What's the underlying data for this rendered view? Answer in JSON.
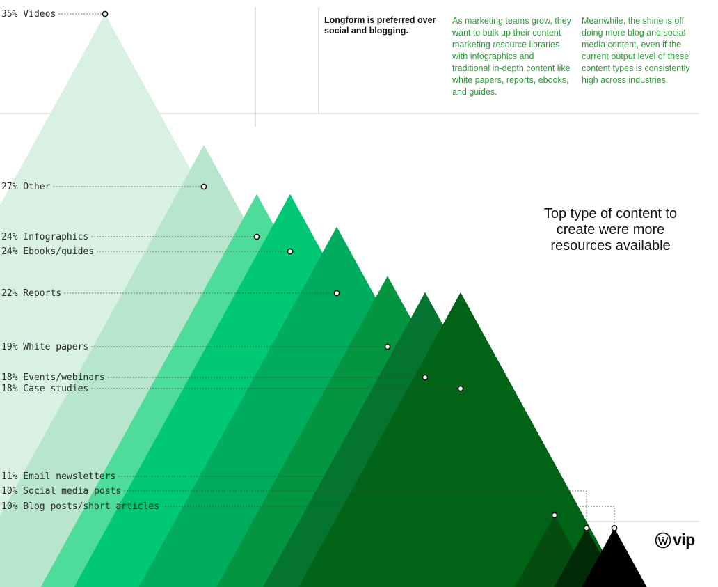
{
  "header": {
    "headline": "Longform is preferred over social and blogging.",
    "paragraph_1": "As marketing teams grow, they want to bulk up their content marketing resource libraries with infographics and traditional in-depth content like white papers, reports, ebooks, and guides.",
    "paragraph_2": "Meanwhile, the shine is off doing more blog and social media content, even if the current output level of these content types is consistently high across industries."
  },
  "brand": {
    "logo_text": "vip",
    "logo_icon": "wordpress-icon"
  },
  "chart_data": {
    "type": "area",
    "title": "Top type of content to create were more resources available",
    "unit": "%",
    "categories": [
      "Videos",
      "Other",
      "Infographics",
      "Ebooks/guides",
      "Reports",
      "White papers",
      "Events/webinars",
      "Case studies",
      "Email newsletters",
      "Social media posts",
      "Blog posts/short articles"
    ],
    "values": [
      35,
      27,
      24,
      24,
      22,
      19,
      18,
      18,
      11,
      10,
      10
    ],
    "labels": [
      "35% Videos",
      "27% Other",
      "24% Infographics",
      "24% Ebooks/guides",
      "22% Reports",
      "19% White papers",
      "18% Events/webinars",
      "18% Case studies",
      "11% Email newsletters",
      "10% Social media posts",
      "10% Blog posts/short articles"
    ],
    "colors": [
      "#d9f1e3",
      "#b7e6cd",
      "#4edc9a",
      "#00c875",
      "#00ad5e",
      "#03953f",
      "#037530",
      "#006316",
      "#044c0f",
      "#012b06",
      "#000000"
    ],
    "ylim": [
      0,
      35
    ],
    "grid": false,
    "legend": "none"
  }
}
